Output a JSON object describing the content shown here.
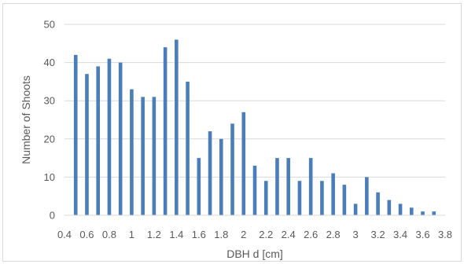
{
  "chart_data": {
    "type": "bar",
    "xlabel": "DBH d [cm]",
    "ylabel": "Number of Shoots",
    "ylim": [
      0,
      50
    ],
    "yticks": [
      0,
      10,
      20,
      30,
      40,
      50
    ],
    "xlim": [
      0.4,
      3.8
    ],
    "xticks": [
      "0.4",
      "0.6",
      "0.8",
      "1",
      "1.2",
      "1.4",
      "1.6",
      "1.8",
      "2",
      "2.2",
      "2.4",
      "2.6",
      "2.8",
      "3",
      "3.2",
      "3.4",
      "3.6",
      "3.8"
    ],
    "grid": "horizontal",
    "legend": "none",
    "bar_color": "#4a7ebb",
    "x": [
      0.5,
      0.6,
      0.7,
      0.8,
      0.9,
      1.0,
      1.1,
      1.2,
      1.3,
      1.4,
      1.5,
      1.6,
      1.7,
      1.8,
      1.9,
      2.0,
      2.1,
      2.2,
      2.3,
      2.4,
      2.5,
      2.6,
      2.7,
      2.8,
      2.9,
      3.0,
      3.1,
      3.2,
      3.3,
      3.4,
      3.5,
      3.6,
      3.7
    ],
    "values": [
      42,
      37,
      39,
      41,
      40,
      33,
      31,
      31,
      44,
      46,
      35,
      15,
      22,
      20,
      24,
      27,
      13,
      9,
      15,
      15,
      9,
      15,
      9,
      11,
      8,
      3,
      10,
      6,
      4,
      3,
      2,
      1,
      1
    ]
  }
}
